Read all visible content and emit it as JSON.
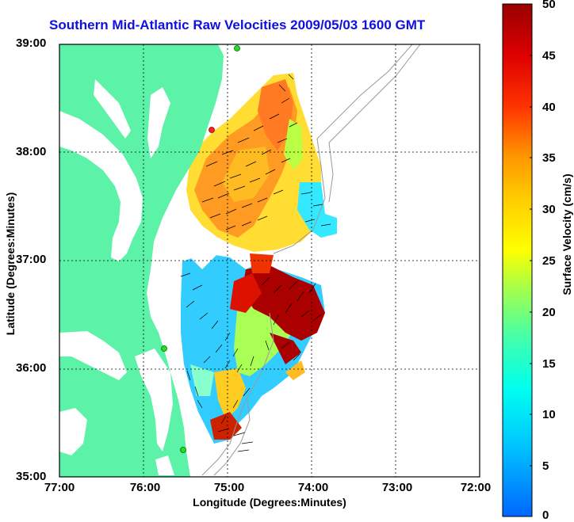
{
  "title": "Southern Mid-Atlantic Raw Velocities 2009/05/03 1600 GMT",
  "xlabel": "Longitude (Degrees:Minutes)",
  "ylabel": "Latitude (Degrees:Minutes)",
  "colorbar": {
    "label": "Surface Velocity (cm/s)",
    "ticks": [
      "50",
      "45",
      "40",
      "35",
      "30",
      "25",
      "20",
      "15",
      "10",
      "5",
      "0"
    ]
  },
  "y_ticks": [
    "39:00",
    "38:00",
    "37:00",
    "36:00",
    "35:00"
  ],
  "x_ticks": [
    "77:00",
    "76:00",
    "75:00",
    "74:00",
    "73:00",
    "72:00"
  ],
  "colors": {
    "land": "#5cf2a8",
    "water": "#ffffff",
    "title": "#1010e0",
    "station": "#22dd22",
    "station_active": "#ff2020"
  }
}
